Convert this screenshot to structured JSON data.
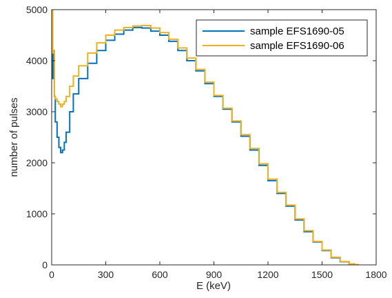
{
  "chart_data": {
    "type": "line",
    "title": "",
    "xlabel": "E (keV)",
    "ylabel": "number of pulses",
    "xlim": [
      0,
      1800
    ],
    "ylim": [
      0,
      5000
    ],
    "xticks": [
      0,
      300,
      600,
      900,
      1200,
      1500,
      1800
    ],
    "yticks": [
      0,
      1000,
      2000,
      3000,
      4000,
      5000
    ],
    "grid": false,
    "legend_position": "top-right",
    "step": true,
    "colors": {
      "series1": "#0072BD",
      "series2": "#EDB120"
    },
    "series": [
      {
        "name": "sample EFS1690-05",
        "x": [
          0,
          5,
          10,
          15,
          20,
          30,
          40,
          50,
          60,
          70,
          80,
          100,
          120,
          150,
          200,
          250,
          300,
          350,
          400,
          450,
          500,
          550,
          600,
          650,
          700,
          750,
          800,
          850,
          900,
          950,
          1000,
          1050,
          1100,
          1150,
          1200,
          1250,
          1300,
          1350,
          1400,
          1450,
          1500,
          1550,
          1600,
          1650,
          1680,
          1700
        ],
        "y": [
          5000,
          3650,
          4200,
          3300,
          2800,
          2500,
          2300,
          2200,
          2250,
          2400,
          2600,
          3000,
          3350,
          3650,
          3950,
          4200,
          4400,
          4520,
          4600,
          4650,
          4640,
          4580,
          4500,
          4380,
          4200,
          4000,
          3800,
          3550,
          3300,
          3050,
          2800,
          2520,
          2250,
          1950,
          1650,
          1400,
          1150,
          880,
          650,
          450,
          280,
          140,
          60,
          18,
          5,
          0
        ]
      },
      {
        "name": "sample EFS1690-06",
        "x": [
          0,
          5,
          10,
          15,
          20,
          30,
          40,
          50,
          60,
          70,
          80,
          100,
          120,
          150,
          200,
          250,
          300,
          350,
          400,
          450,
          500,
          550,
          600,
          650,
          700,
          750,
          800,
          850,
          900,
          950,
          1000,
          1050,
          1100,
          1150,
          1200,
          1250,
          1300,
          1350,
          1400,
          1450,
          1500,
          1550,
          1600,
          1650,
          1680,
          1700
        ],
        "y": [
          5000,
          4150,
          4200,
          3300,
          3250,
          3200,
          3150,
          3100,
          3150,
          3200,
          3300,
          3500,
          3700,
          3900,
          4150,
          4350,
          4500,
          4600,
          4650,
          4680,
          4690,
          4640,
          4550,
          4420,
          4250,
          4050,
          3830,
          3580,
          3320,
          3070,
          2820,
          2550,
          2280,
          1980,
          1680,
          1420,
          1170,
          900,
          670,
          460,
          290,
          150,
          65,
          20,
          6,
          0
        ]
      }
    ]
  }
}
